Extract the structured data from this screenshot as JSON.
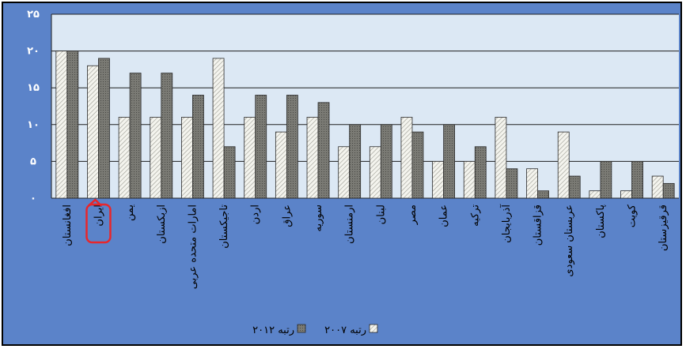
{
  "chart_data": {
    "type": "bar",
    "categories": [
      "افغانستان",
      "ایران",
      "یمن",
      "ازبکستان",
      "امارات متحده عربی",
      "تاجیکستان",
      "اردن",
      "عراق",
      "سوریه",
      "ارمنستان",
      "لبنان",
      "مصر",
      "عمان",
      "ترکیه",
      "آذربایجان",
      "قزاقستان",
      "عربستان سعودی",
      "پاکستان",
      "کویت",
      "قرقیزستان"
    ],
    "series": [
      {
        "name": "رتبه ۲۰۰۷",
        "values": [
          20,
          18,
          11,
          11,
          11,
          19,
          11,
          9,
          11,
          7,
          7,
          11,
          5,
          5,
          11,
          4,
          9,
          1,
          1,
          3
        ]
      },
      {
        "name": "رتبه ۲۰۱۲",
        "values": [
          20,
          19,
          17,
          17,
          14,
          7,
          14,
          14,
          13,
          10,
          10,
          9,
          10,
          7,
          4,
          1,
          3,
          5,
          5,
          2
        ]
      }
    ],
    "y_ticks": [
      "۰",
      "۵",
      "۱۰",
      "۱۵",
      "۲۰",
      "۲۵"
    ],
    "ylim": [
      0,
      25
    ],
    "grid": true,
    "legend_position": "bottom",
    "highlighted_category": "ایران",
    "colors": {
      "frame_background": "#5b83c9",
      "plot_background": "#dce8f4",
      "series_2007": "#f2f2ec",
      "series_2012": "#7a7a74",
      "highlight": "#e8262b"
    }
  }
}
